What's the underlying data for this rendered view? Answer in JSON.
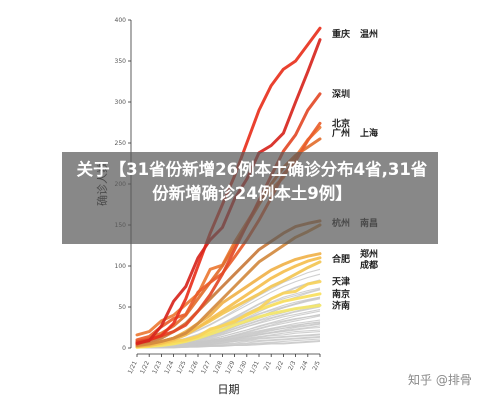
{
  "title_overlay": {
    "text": "关于【31省份新增26例本土确诊分布4省,31省份新增确诊24例本土9例】"
  },
  "watermark": "知乎 @排骨",
  "chart_data": {
    "type": "line",
    "title": "",
    "xlabel": "日期",
    "ylabel": "确诊人数",
    "ylim": [
      0,
      400
    ],
    "y_ticks": [
      0,
      50,
      100,
      150,
      200,
      250,
      300,
      350,
      400
    ],
    "grid": false,
    "categories": [
      "1/21",
      "1/22",
      "1/23",
      "1/24",
      "1/25",
      "1/26",
      "1/27",
      "1/28",
      "1/29",
      "1/30",
      "1/31",
      "2/1",
      "2/2",
      "2/3",
      "2/4",
      "2/5"
    ],
    "x_tick_labels": [
      "1/21",
      "1/22",
      "1/23",
      "1/24",
      "1/25",
      "1/26",
      "1/27",
      "1/28",
      "1/29",
      "1/30",
      "1/31",
      "2/1",
      "2/2",
      "2/3",
      "2/4",
      "2/5"
    ],
    "background_series_color": "#c8c8c8",
    "series": [
      {
        "name": "重庆",
        "label_group": 0,
        "color": "#d7261e",
        "values": [
          6,
          9,
          27,
          57,
          75,
          110,
          132,
          147,
          182,
          206,
          238,
          247,
          262,
          300,
          337,
          376
        ]
      },
      {
        "name": "温州",
        "label_group": 0,
        "color": "#e8311d",
        "values": [
          5,
          10,
          15,
          30,
          60,
          100,
          140,
          175,
          210,
          250,
          290,
          320,
          340,
          350,
          370,
          390
        ]
      },
      {
        "name": "深圳",
        "label_group": 1,
        "color": "#e34a28",
        "values": [
          8,
          10,
          15,
          20,
          28,
          45,
          65,
          90,
          120,
          150,
          180,
          210,
          240,
          260,
          290,
          310
        ]
      },
      {
        "name": "北京",
        "label_group": 2,
        "color": "#e95d2b",
        "values": [
          10,
          14,
          26,
          36,
          41,
          68,
          80,
          91,
          111,
          132,
          156,
          183,
          212,
          228,
          253,
          274
        ]
      },
      {
        "name": "广州",
        "label_group": 3,
        "color": "#e26f2f",
        "values": [
          7,
          12,
          18,
          27,
          40,
          60,
          80,
          100,
          125,
          150,
          175,
          200,
          220,
          235,
          245,
          255
        ]
      },
      {
        "name": "上海",
        "label_group": 3,
        "color": "#ec7a34",
        "values": [
          16,
          20,
          33,
          40,
          53,
          66,
          96,
          101,
          129,
          153,
          177,
          193,
          208,
          233,
          254,
          269
        ]
      },
      {
        "name": "杭州",
        "label_group": 4,
        "color": "#c97b3c",
        "values": [
          5,
          8,
          12,
          20,
          30,
          45,
          60,
          75,
          90,
          105,
          120,
          130,
          140,
          148,
          152,
          155
        ]
      },
      {
        "name": "南昌",
        "label_group": 4,
        "color": "#d28a3f",
        "values": [
          3,
          5,
          8,
          12,
          18,
          30,
          45,
          60,
          75,
          90,
          105,
          115,
          125,
          135,
          142,
          150
        ]
      },
      {
        "name": "合肥",
        "label_group": 5,
        "color": "#f0b24a",
        "values": [
          2,
          4,
          8,
          12,
          20,
          30,
          40,
          55,
          65,
          75,
          85,
          95,
          102,
          108,
          112,
          115
        ]
      },
      {
        "name": "郑州",
        "label_group": 5,
        "color": "#f5bf4f",
        "values": [
          2,
          3,
          6,
          10,
          16,
          25,
          35,
          45,
          55,
          65,
          75,
          85,
          93,
          100,
          106,
          110
        ]
      },
      {
        "name": "成都",
        "label_group": 5,
        "color": "#f2c654",
        "values": [
          2,
          4,
          8,
          12,
          18,
          25,
          33,
          42,
          50,
          58,
          66,
          75,
          82,
          90,
          98,
          105
        ]
      },
      {
        "name": "天津",
        "label_group": 6,
        "color": "#f7d35a",
        "values": [
          2,
          4,
          5,
          8,
          10,
          14,
          23,
          27,
          32,
          41,
          48,
          60,
          67,
          69,
          78,
          81
        ]
      },
      {
        "name": "南京",
        "label_group": 7,
        "color": "#f8df5d",
        "values": [
          1,
          2,
          4,
          6,
          9,
          14,
          20,
          27,
          33,
          40,
          47,
          52,
          57,
          60,
          63,
          66
        ]
      },
      {
        "name": "济南",
        "label_group": 8,
        "color": "#f3e66a",
        "values": [
          1,
          2,
          3,
          5,
          8,
          12,
          17,
          22,
          28,
          33,
          38,
          42,
          45,
          48,
          50,
          52
        ]
      }
    ],
    "background_series": [
      [
        1,
        2,
        3,
        5,
        8,
        12,
        16,
        21,
        26,
        31,
        36,
        41,
        45,
        48,
        51,
        54
      ],
      [
        1,
        1,
        2,
        4,
        6,
        9,
        13,
        17,
        21,
        26,
        30,
        34,
        38,
        41,
        44,
        47
      ],
      [
        1,
        2,
        3,
        4,
        6,
        8,
        11,
        14,
        18,
        22,
        26,
        30,
        33,
        36,
        38,
        40
      ],
      [
        0,
        1,
        2,
        3,
        5,
        7,
        9,
        12,
        15,
        18,
        21,
        24,
        27,
        30,
        32,
        34
      ],
      [
        1,
        1,
        2,
        3,
        4,
        6,
        8,
        10,
        13,
        16,
        19,
        22,
        24,
        26,
        28,
        30
      ],
      [
        0,
        1,
        1,
        2,
        3,
        5,
        7,
        9,
        11,
        14,
        17,
        19,
        21,
        23,
        25,
        27
      ],
      [
        1,
        2,
        3,
        4,
        5,
        6,
        8,
        10,
        12,
        14,
        16,
        18,
        20,
        22,
        24,
        25
      ],
      [
        0,
        0,
        1,
        2,
        3,
        4,
        6,
        8,
        10,
        12,
        14,
        16,
        18,
        20,
        21,
        22
      ],
      [
        0,
        1,
        1,
        2,
        2,
        3,
        5,
        7,
        9,
        11,
        13,
        15,
        16,
        18,
        19,
        20
      ],
      [
        0,
        0,
        1,
        1,
        2,
        3,
        4,
        6,
        8,
        10,
        12,
        13,
        14,
        15,
        16,
        17
      ],
      [
        1,
        1,
        2,
        2,
        3,
        4,
        5,
        6,
        8,
        9,
        11,
        12,
        13,
        14,
        15,
        16
      ],
      [
        0,
        1,
        1,
        1,
        2,
        3,
        4,
        5,
        6,
        8,
        9,
        10,
        11,
        12,
        13,
        14
      ],
      [
        0,
        0,
        1,
        1,
        2,
        2,
        3,
        4,
        5,
        6,
        8,
        9,
        10,
        11,
        12,
        13
      ],
      [
        0,
        0,
        0,
        1,
        1,
        2,
        3,
        3,
        4,
        5,
        6,
        7,
        8,
        9,
        10,
        11
      ],
      [
        0,
        0,
        1,
        1,
        1,
        2,
        2,
        3,
        3,
        4,
        5,
        6,
        6,
        7,
        8,
        9
      ],
      [
        0,
        0,
        0,
        0,
        1,
        1,
        2,
        2,
        3,
        3,
        4,
        5,
        5,
        6,
        7,
        8
      ],
      [
        1,
        2,
        4,
        7,
        11,
        16,
        22,
        29,
        36,
        43,
        50,
        56,
        62,
        66,
        70,
        73
      ],
      [
        1,
        2,
        3,
        6,
        9,
        13,
        18,
        24,
        30,
        36,
        42,
        47,
        52,
        56,
        59,
        62
      ],
      [
        0,
        1,
        2,
        4,
        7,
        11,
        15,
        20,
        26,
        32,
        38,
        44,
        49,
        53,
        57,
        60
      ],
      [
        1,
        2,
        4,
        6,
        10,
        15,
        21,
        28,
        35,
        42,
        49,
        55,
        60,
        64,
        68,
        72
      ],
      [
        0,
        1,
        3,
        5,
        8,
        12,
        17,
        23,
        29,
        35,
        41,
        46,
        50,
        54,
        58,
        61
      ],
      [
        1,
        1,
        2,
        4,
        6,
        10,
        14,
        19,
        24,
        29,
        34,
        39,
        43,
        47,
        50,
        53
      ],
      [
        0,
        1,
        2,
        3,
        5,
        8,
        12,
        16,
        21,
        26,
        31,
        36,
        40,
        44,
        47,
        50
      ],
      [
        1,
        2,
        3,
        5,
        7,
        10,
        14,
        18,
        23,
        28,
        33,
        37,
        41,
        45,
        48,
        51
      ],
      [
        0,
        0,
        1,
        3,
        5,
        7,
        10,
        14,
        18,
        22,
        27,
        31,
        35,
        39,
        42,
        45
      ],
      [
        0,
        1,
        1,
        2,
        4,
        6,
        9,
        12,
        16,
        20,
        24,
        28,
        32,
        35,
        38,
        41
      ],
      [
        1,
        1,
        2,
        3,
        4,
        6,
        9,
        12,
        15,
        19,
        23,
        27,
        30,
        33,
        36,
        39
      ],
      [
        0,
        1,
        2,
        3,
        4,
        5,
        7,
        9,
        12,
        15,
        18,
        21,
        24,
        27,
        30,
        32
      ],
      [
        0,
        0,
        1,
        2,
        3,
        4,
        6,
        8,
        10,
        13,
        16,
        19,
        22,
        25,
        27,
        29
      ],
      [
        1,
        2,
        3,
        4,
        5,
        7,
        9,
        11,
        14,
        17,
        20,
        23,
        26,
        28,
        30,
        31
      ],
      [
        2,
        4,
        7,
        11,
        16,
        22,
        29,
        37,
        46,
        55,
        64,
        72,
        80,
        86,
        92,
        96
      ],
      [
        1,
        3,
        5,
        8,
        12,
        17,
        23,
        30,
        38,
        46,
        54,
        61,
        68,
        74,
        79,
        83
      ],
      [
        1,
        2,
        4,
        7,
        11,
        16,
        22,
        29,
        37,
        45,
        53,
        60,
        67,
        73,
        78,
        82
      ],
      [
        2,
        3,
        6,
        10,
        15,
        21,
        28,
        36,
        44,
        52,
        60,
        68,
        75,
        81,
        86,
        90
      ],
      [
        1,
        2,
        3,
        5,
        8,
        12,
        17,
        23,
        30,
        37,
        44,
        51,
        57,
        62,
        67,
        71
      ],
      [
        0,
        1,
        3,
        5,
        8,
        11,
        15,
        20,
        26,
        32,
        38,
        44,
        49,
        54,
        58,
        62
      ]
    ]
  }
}
